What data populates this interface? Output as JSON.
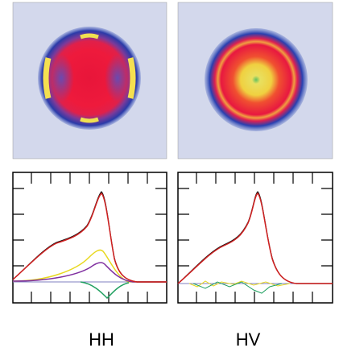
{
  "panels": [
    {
      "label": "HH"
    },
    {
      "label": "HV"
    }
  ]
}
